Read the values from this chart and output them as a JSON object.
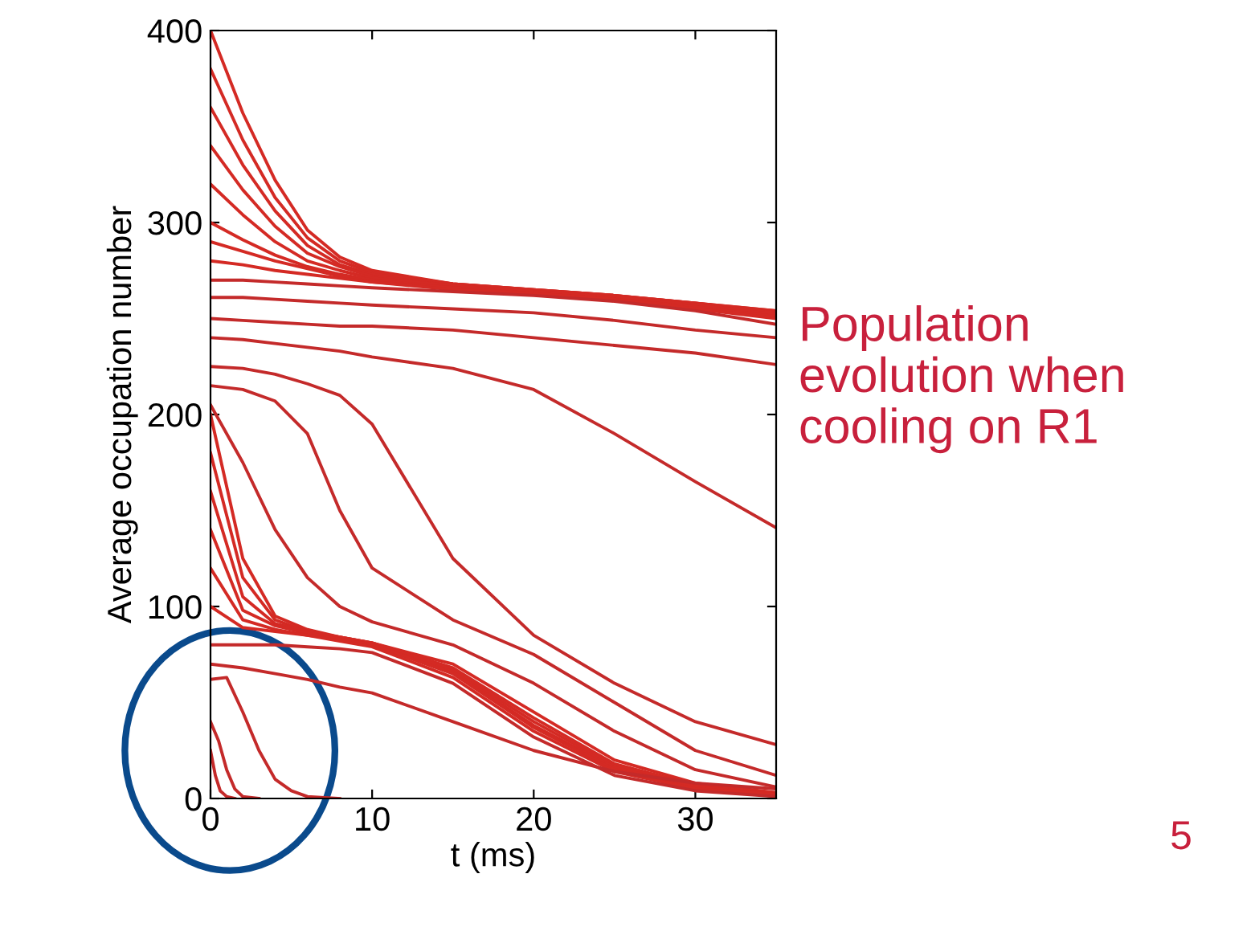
{
  "chart_data": {
    "type": "line",
    "xlabel": "t (ms)",
    "ylabel": "Average occupation number",
    "x": [
      0,
      2,
      4,
      6,
      8,
      10,
      15,
      20,
      25,
      30,
      35
    ],
    "xlim": [
      0,
      35
    ],
    "xticks": [
      0,
      10,
      20,
      30
    ],
    "ylim": [
      0,
      400
    ],
    "yticks": [
      0,
      100,
      200,
      300,
      400
    ],
    "grid": false,
    "legend": false,
    "marker": "none",
    "line_style": "solid",
    "series": [
      {
        "color": "#d42a24",
        "values": [
          400,
          357,
          322,
          296,
          282,
          275,
          268,
          265,
          262,
          258,
          254
        ]
      },
      {
        "color": "#d42a24",
        "values": [
          380,
          343,
          313,
          292,
          280,
          274,
          268,
          265,
          262,
          258,
          254
        ]
      },
      {
        "color": "#d42a24",
        "values": [
          360,
          330,
          306,
          288,
          278,
          273,
          268,
          265,
          262,
          258,
          253
        ]
      },
      {
        "color": "#d42a24",
        "values": [
          340,
          317,
          298,
          284,
          277,
          272,
          267,
          264,
          261,
          257,
          253
        ]
      },
      {
        "color": "#d42a24",
        "values": [
          320,
          304,
          290,
          280,
          275,
          271,
          267,
          264,
          261,
          257,
          252
        ]
      },
      {
        "color": "#d42a24",
        "values": [
          300,
          291,
          283,
          277,
          273,
          270,
          266,
          263,
          260,
          256,
          251
        ]
      },
      {
        "color": "#d42a24",
        "values": [
          290,
          285,
          280,
          276,
          272,
          269,
          266,
          263,
          260,
          256,
          251
        ]
      },
      {
        "color": "#d42a24",
        "values": [
          280,
          278,
          275,
          273,
          271,
          269,
          265,
          263,
          260,
          255,
          250
        ]
      },
      {
        "color": "#c42a2a",
        "values": [
          270,
          270,
          269,
          268,
          267,
          266,
          264,
          262,
          259,
          254,
          247
        ]
      },
      {
        "color": "#c42a2a",
        "values": [
          261,
          261,
          260,
          259,
          258,
          257,
          255,
          253,
          249,
          244,
          240
        ]
      },
      {
        "color": "#c42a2a",
        "values": [
          250,
          249,
          248,
          247,
          246,
          246,
          244,
          240,
          236,
          232,
          226
        ]
      },
      {
        "color": "#c42a2a",
        "values": [
          240,
          239,
          237,
          235,
          233,
          230,
          224,
          213,
          190,
          165,
          141
        ]
      },
      {
        "color": "#c42a2a",
        "values": [
          225,
          224,
          221,
          216,
          210,
          195,
          125,
          85,
          60,
          40,
          28
        ]
      },
      {
        "color": "#c42a2a",
        "values": [
          215,
          213,
          207,
          190,
          150,
          120,
          93,
          75,
          50,
          25,
          12
        ]
      },
      {
        "color": "#c42a2a",
        "values": [
          205,
          175,
          140,
          115,
          100,
          92,
          80,
          60,
          35,
          15,
          6
        ]
      },
      {
        "color": "#d42a24",
        "values": [
          200,
          125,
          95,
          88,
          84,
          81,
          70,
          45,
          20,
          8,
          3
        ]
      },
      {
        "color": "#d42a24",
        "values": [
          180,
          115,
          93,
          87,
          84,
          81,
          68,
          42,
          18,
          7,
          3
        ]
      },
      {
        "color": "#d42a24",
        "values": [
          160,
          105,
          91,
          87,
          84,
          81,
          67,
          40,
          17,
          7,
          2
        ]
      },
      {
        "color": "#d42a24",
        "values": [
          140,
          98,
          90,
          86,
          83,
          80,
          66,
          38,
          16,
          6,
          2
        ]
      },
      {
        "color": "#d42a24",
        "values": [
          120,
          93,
          88,
          85,
          83,
          80,
          65,
          37,
          15,
          6,
          2
        ]
      },
      {
        "color": "#d42a24",
        "values": [
          100,
          89,
          87,
          85,
          82,
          79,
          63,
          35,
          14,
          5,
          2
        ]
      },
      {
        "color": "#c42a2a",
        "values": [
          80,
          80,
          80,
          79,
          78,
          76,
          60,
          32,
          12,
          4,
          1
        ]
      },
      {
        "color": "#c42a2a",
        "values": [
          70,
          68,
          65,
          62,
          58,
          55,
          40,
          25,
          14,
          8,
          5
        ]
      },
      {
        "color": "#c42a2a",
        "x": [
          0,
          1,
          2,
          3,
          4,
          5,
          6,
          8
        ],
        "values": [
          62,
          63,
          45,
          25,
          10,
          4,
          1,
          0
        ]
      },
      {
        "color": "#c42a2a",
        "x": [
          0,
          0.5,
          1,
          1.5,
          2,
          3
        ],
        "values": [
          40,
          30,
          15,
          5,
          1,
          0
        ]
      },
      {
        "color": "#c42a2a",
        "x": [
          0,
          0.3,
          0.6,
          1,
          1.5
        ],
        "values": [
          25,
          12,
          4,
          1,
          0
        ]
      }
    ],
    "annotations": [
      "Population\nevolution when\ncooling on R1",
      "5"
    ]
  }
}
